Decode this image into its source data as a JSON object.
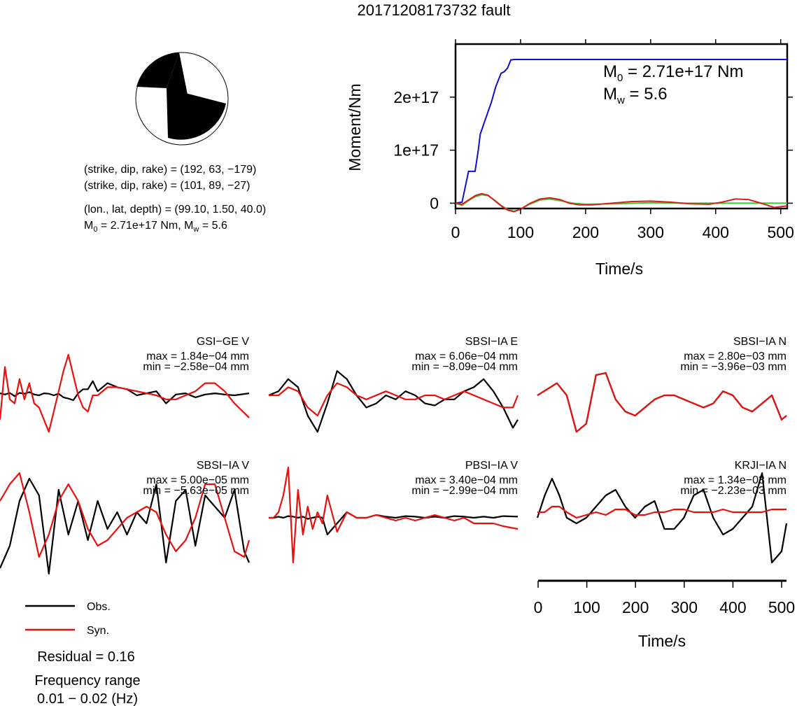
{
  "title": "20171208173732 fault",
  "colors": {
    "observed": "#000000",
    "synthetic": "#e8110f",
    "moment_cumulative": "#1010d0",
    "moment_rate_green": "#33cc33",
    "moment_rate_red": "#d62020"
  },
  "mechanism": {
    "lines": [
      "(strike, dip, rake) = (192, 63, −179)",
      "(strike, dip, rake) = (101, 89, −27)",
      "(lon., lat, depth) = (99.10, 1.50, 40.0)"
    ],
    "m0_label": "M",
    "m0_sub": "0",
    "m0_rest": " = 2.71e+17 Nm, M",
    "mw_sub": "w",
    "mw_rest": " = 5.6"
  },
  "chart_data": [
    {
      "type": "line",
      "name": "moment_function",
      "ylabel": "Moment/Nm",
      "xlabel": "Time/s",
      "xlim": [
        0,
        510
      ],
      "ylim": [
        -10000000000000000,
        300000000000000000
      ],
      "x_ticks": [
        "0",
        "100",
        "200",
        "300",
        "400",
        "500"
      ],
      "y_ticks": [
        "0",
        "1e+17",
        "2e+17"
      ],
      "annotation": {
        "m0_label": "M",
        "m0_sub": "0",
        "m0_value": " = 2.71e+17 Nm",
        "mw_label": "M",
        "mw_sub": "w",
        "mw_value": " = 5.6"
      },
      "series": [
        {
          "color_key": "moment_cumulative",
          "x": [
            0,
            10,
            20,
            25,
            30,
            35,
            38,
            45,
            55,
            62,
            70,
            75,
            80,
            85,
            90,
            510
          ],
          "y": [
            0,
            2000000000000000.0,
            6e+16,
            6e+16,
            6e+16,
            1e+17,
            1.3e+17,
            1.55e+17,
            1.9e+17,
            2.2e+17,
            2.45e+17,
            2.48e+17,
            2.55e+17,
            2.7e+17,
            2.71e+17,
            2.71e+17
          ]
        },
        {
          "color_key": "moment_rate_green",
          "x": [
            0,
            10,
            20,
            30,
            40,
            50,
            60,
            70,
            80,
            90,
            100,
            110,
            130,
            145,
            160,
            180,
            200,
            250,
            300,
            350,
            400,
            450,
            500,
            510
          ],
          "y": [
            0,
            -4000000000000000.0,
            5000000000000000.0,
            1.2e+16,
            1.6e+16,
            1.4e+16,
            6000000000000000.0,
            -4000000000000000.0,
            -1.2e+16,
            -1.5e+16,
            -1.2e+16,
            -4000000000000000.0,
            6000000000000000.0,
            8000000000000000.0,
            5000000000000000.0,
            0,
            -2000000000000000.0,
            -1000000000000000.0,
            1000000000000000.0,
            0,
            0,
            0,
            0,
            0
          ]
        },
        {
          "color_key": "moment_rate_red",
          "x": [
            0,
            10,
            20,
            30,
            40,
            50,
            60,
            70,
            80,
            90,
            100,
            115,
            130,
            145,
            160,
            175,
            190,
            210,
            240,
            270,
            300,
            330,
            360,
            390,
            410,
            430,
            450,
            470,
            490,
            510
          ],
          "y": [
            0,
            -2000000000000000.0,
            6000000000000000.0,
            1.4e+16,
            1.8e+16,
            1.5e+16,
            5000000000000000.0,
            -5000000000000000.0,
            -1.3e+16,
            -1.6e+16,
            -1.1e+16,
            0,
            8000000000000000.0,
            1e+16,
            7000000000000000.0,
            0,
            -3000000000000000.0,
            -3000000000000000.0,
            0,
            3000000000000000.0,
            4000000000000000.0,
            2000000000000000.0,
            -1000000000000000.0,
            -2000000000000000.0,
            2000000000000000.0,
            8000000000000000.0,
            7000000000000000.0,
            0,
            -8000000000000000.0,
            -5000000000000000.0
          ]
        }
      ]
    },
    {
      "type": "line",
      "name": "waveforms",
      "xlabel": "Time/s",
      "xlim": [
        0,
        510
      ],
      "x_ticks": [
        "0",
        "100",
        "200",
        "300",
        "400",
        "500"
      ],
      "panels": [
        {
          "label": "GSI−GE V",
          "max": "max = 1.84e−04 mm",
          "min": "min = −2.58e−04 mm",
          "t": [
            0,
            10,
            20,
            30,
            40,
            50,
            60,
            70,
            80,
            90,
            100,
            110,
            120,
            130,
            140,
            150,
            160,
            170,
            180,
            190,
            200,
            220,
            240,
            260,
            280,
            300,
            320,
            340,
            360,
            380,
            400,
            420,
            440,
            460,
            480,
            510
          ],
          "obs": [
            0.05,
            0.02,
            0.06,
            -0.02,
            0.06,
            0.04,
            0.08,
            0.02,
            0.0,
            0.05,
            0.04,
            0.0,
            0.04,
            -0.05,
            -0.08,
            -0.12,
            0.05,
            0.15,
            0.15,
            0.35,
            0.1,
            0.3,
            0.2,
            0.15,
            0.0,
            0.05,
            0.1,
            -0.2,
            0.02,
            0.05,
            -0.05,
            0.02,
            0.05,
            0.02,
            0.0,
            0.05
          ],
          "syn": [
            -0.6,
            0.7,
            -0.1,
            -0.2,
            0.4,
            -0.1,
            0.3,
            -0.2,
            -0.3,
            -0.6,
            -0.9,
            -0.4,
            0.1,
            0.6,
            1.0,
            0.5,
            0.0,
            -0.3,
            -0.4,
            0.0,
            0.0,
            0.2,
            0.2,
            0.15,
            0.1,
            0.05,
            0.0,
            -0.1,
            -0.1,
            0.0,
            0.1,
            0.3,
            0.3,
            0.1,
            -0.2,
            -0.55
          ]
        },
        {
          "label": "SBSI−IA E",
          "max": "max = 6.06e−04 mm",
          "min": "min = −8.09e−04 mm",
          "t": [
            0,
            20,
            40,
            60,
            80,
            100,
            120,
            140,
            160,
            180,
            200,
            220,
            240,
            260,
            280,
            300,
            320,
            340,
            360,
            380,
            400,
            420,
            440,
            460,
            480,
            500,
            510
          ],
          "obs": [
            0.0,
            0.1,
            0.4,
            0.2,
            -0.5,
            -0.9,
            -0.2,
            0.6,
            0.4,
            0.0,
            -0.3,
            -0.2,
            0.0,
            -0.1,
            0.1,
            0.0,
            -0.2,
            -0.25,
            -0.1,
            -0.1,
            0.1,
            0.2,
            0.4,
            0.1,
            -0.3,
            -0.8,
            -0.6
          ],
          "syn": [
            0.0,
            0.0,
            0.2,
            0.1,
            -0.3,
            -0.5,
            0.0,
            0.3,
            0.2,
            0.0,
            -0.1,
            0.0,
            0.1,
            0.0,
            -0.1,
            -0.1,
            0.0,
            0.0,
            -0.1,
            0.0,
            0.1,
            0.0,
            -0.1,
            -0.2,
            -0.3,
            -0.3,
            0.0
          ],
          "syn_offset": 0.0
        },
        {
          "label": "SBSI−IA N",
          "max": "max = 2.80e−03 mm",
          "min": "min = −3.96e−03 mm",
          "t": [
            0,
            20,
            40,
            60,
            80,
            100,
            120,
            140,
            160,
            180,
            200,
            220,
            240,
            260,
            280,
            300,
            320,
            340,
            360,
            380,
            400,
            420,
            440,
            460,
            480,
            500,
            510
          ],
          "obs": [
            0.0,
            0.15,
            0.3,
            0.0,
            -0.9,
            -0.7,
            0.5,
            0.55,
            -0.1,
            -0.4,
            -0.5,
            -0.3,
            -0.1,
            0.0,
            0.0,
            -0.1,
            -0.2,
            -0.3,
            -0.2,
            0.1,
            0.0,
            -0.3,
            -0.4,
            -0.2,
            0.0,
            -0.6,
            -0.5
          ],
          "syn": [
            0.0,
            0.15,
            0.3,
            0.0,
            -0.9,
            -0.7,
            0.5,
            0.55,
            -0.1,
            -0.4,
            -0.5,
            -0.3,
            -0.1,
            0.0,
            0.0,
            -0.1,
            -0.2,
            -0.3,
            -0.2,
            0.1,
            0.0,
            -0.3,
            -0.4,
            -0.2,
            0.0,
            -0.6,
            -0.5
          ]
        },
        {
          "label": "SBSI−IA V",
          "max": "max = 5.00e−05 mm",
          "min": "min = −5.63e−05 mm",
          "t": [
            0,
            20,
            40,
            60,
            80,
            100,
            120,
            140,
            160,
            180,
            200,
            220,
            240,
            260,
            280,
            300,
            320,
            340,
            360,
            380,
            400,
            420,
            440,
            460,
            480,
            500,
            510
          ],
          "obs": [
            -0.9,
            -0.5,
            0.3,
            0.7,
            0.4,
            -1.0,
            0.5,
            -0.3,
            0.3,
            -0.4,
            0.3,
            -0.2,
            0.1,
            -0.3,
            0.1,
            -0.1,
            0.6,
            -0.8,
            0.3,
            0.5,
            -0.5,
            0.4,
            0.2,
            0.0,
            0.5,
            -0.6,
            -0.8
          ],
          "syn": [
            0.3,
            0.6,
            0.8,
            0.1,
            -0.7,
            -0.3,
            0.3,
            0.6,
            0.3,
            -0.2,
            -0.5,
            -0.4,
            -0.2,
            0.0,
            0.1,
            0.2,
            0.1,
            -0.3,
            -0.6,
            -0.4,
            0.0,
            0.6,
            0.6,
            0.0,
            -0.6,
            -0.7,
            -0.4
          ]
        },
        {
          "label": "PBSI−IA V",
          "max": "max = 3.40e−04 mm",
          "min": "min = −2.99e−04 mm",
          "t": [
            0,
            10,
            20,
            30,
            40,
            50,
            60,
            70,
            80,
            90,
            100,
            110,
            120,
            140,
            160,
            180,
            200,
            220,
            240,
            260,
            280,
            300,
            320,
            340,
            360,
            380,
            400,
            420,
            440,
            460,
            480,
            510
          ],
          "obs": [
            0.0,
            0.0,
            0.02,
            0.0,
            0.03,
            0.02,
            0.0,
            0.02,
            -0.02,
            0.0,
            0.02,
            0.0,
            -0.3,
            -0.1,
            0.1,
            0.0,
            0.0,
            0.05,
            0.02,
            0.0,
            0.03,
            0.02,
            0.0,
            0.02,
            0.0,
            0.03,
            0.02,
            0.0,
            0.02,
            0.0,
            0.03,
            0.02
          ],
          "syn": [
            0.0,
            0.0,
            0.1,
            0.4,
            0.9,
            -0.8,
            0.5,
            -0.3,
            0.2,
            -0.2,
            0.1,
            -0.1,
            0.4,
            -0.25,
            0.1,
            0.0,
            0.0,
            0.05,
            0.0,
            -0.05,
            0.0,
            -0.05,
            0.0,
            0.05,
            0.0,
            -0.05,
            0.0,
            -0.1,
            -0.1,
            -0.1,
            -0.15,
            -0.2
          ]
        },
        {
          "label": "KRJI−IA N",
          "max": "max = 1.34e−03 mm",
          "min": "min = −2.23e−03 mm",
          "t": [
            0,
            15,
            30,
            45,
            60,
            80,
            100,
            120,
            140,
            160,
            180,
            200,
            220,
            240,
            260,
            280,
            300,
            320,
            340,
            360,
            380,
            400,
            420,
            440,
            460,
            480,
            500,
            510
          ],
          "obs": [
            0.0,
            0.4,
            0.7,
            0.4,
            0.0,
            -0.1,
            0.0,
            0.2,
            0.4,
            0.5,
            0.2,
            0.0,
            0.2,
            0.3,
            -0.2,
            -0.2,
            0.0,
            0.4,
            0.5,
            0.0,
            -0.3,
            -0.2,
            0.0,
            0.2,
            0.8,
            -0.8,
            -0.6,
            -0.1
          ],
          "syn": [
            0.1,
            0.1,
            0.2,
            0.2,
            0.1,
            0.0,
            0.05,
            0.1,
            0.05,
            0.15,
            0.15,
            0.05,
            0.05,
            0.1,
            0.1,
            0.15,
            0.15,
            0.1,
            0.1,
            0.1,
            0.15,
            0.1,
            0.1,
            0.1,
            0.1,
            0.15,
            0.15,
            0.15
          ]
        }
      ]
    }
  ],
  "legend": {
    "observed_label": "Obs.",
    "synthetic_label": "Syn."
  },
  "residual": "Residual = 0.16",
  "frequency": {
    "label": "Frequency range",
    "value": "0.01 − 0.02 (Hz)"
  }
}
